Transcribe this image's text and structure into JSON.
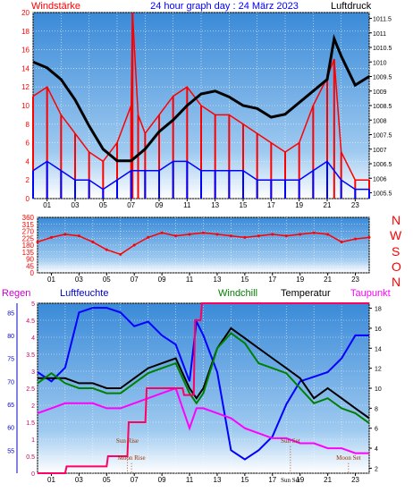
{
  "header": {
    "left_label": "Windstärke",
    "title": "24 hour graph day : 24 März 2023",
    "right_label": "Luftdruck"
  },
  "compass": [
    "N",
    "W",
    "S",
    "O",
    "N"
  ],
  "bottom_labels": {
    "regen": "Regen",
    "luftfeuchte": "Luftfeuchte",
    "windchill": "Windchill",
    "temperatur": "Temperatur",
    "taupunkt": "Taupunkt"
  },
  "annotations": {
    "sun_rise": "Sun Rise",
    "moon_rise": "Moon Rise",
    "sun_set": "Sun Set",
    "moon_set": "Moon Set",
    "sun_set_axis": "Sun Set"
  },
  "colors": {
    "wind_avg": "#0000ff",
    "wind_gust": "#ff0000",
    "pressure": "#000000",
    "wind_dir": "#ff0000",
    "humidity": "#0000ff",
    "windchill": "#008000",
    "temperature": "#000000",
    "dewpoint": "#ff00ff",
    "rain": "#ff0066",
    "header_left": "#ff0000",
    "header_title": "#0000ff",
    "header_right": "#000000",
    "bg_top": "#3a8ad8",
    "bg_bottom": "#ffffff"
  },
  "chart_data": [
    {
      "type": "line",
      "x_ticks": [
        "01",
        "03",
        "05",
        "07",
        "09",
        "11",
        "13",
        "15",
        "17",
        "19",
        "21",
        "23"
      ],
      "left_axis": {
        "ticks": [
          0,
          2,
          4,
          6,
          8,
          10,
          12,
          14,
          16,
          18,
          20
        ],
        "ylim": [
          0,
          20
        ]
      },
      "right_axis": {
        "ticks": [
          1005.5,
          1006,
          1006.5,
          1007,
          1007.5,
          1008,
          1008.5,
          1009,
          1009.5,
          1010,
          1010.5,
          1011,
          1011.5
        ],
        "ylim": [
          1005.3,
          1011.7
        ]
      },
      "series": [
        {
          "key": "wind_gust",
          "axis": "left",
          "x": [
            0,
            1,
            2,
            3,
            4,
            5,
            6,
            7,
            7.1,
            7.5,
            8,
            9,
            10,
            11,
            12,
            13,
            14,
            15,
            16,
            17,
            18,
            19,
            20,
            21,
            21.5,
            22,
            23,
            24
          ],
          "values": [
            11,
            12,
            9,
            7,
            5,
            4,
            6,
            10,
            20,
            9,
            7,
            9,
            11,
            12,
            10,
            9,
            9,
            8,
            7,
            6,
            5,
            6,
            10,
            13,
            15,
            5,
            2,
            2
          ]
        },
        {
          "key": "wind_avg",
          "axis": "left",
          "x": [
            0,
            1,
            2,
            3,
            4,
            5,
            6,
            7,
            8,
            9,
            10,
            11,
            12,
            13,
            14,
            15,
            16,
            17,
            18,
            19,
            20,
            21,
            22,
            23,
            24
          ],
          "values": [
            3,
            4,
            3,
            2,
            2,
            1,
            2,
            3,
            3,
            3,
            4,
            4,
            3,
            3,
            3,
            3,
            2,
            2,
            2,
            2,
            3,
            4,
            2,
            1,
            1
          ]
        },
        {
          "key": "pressure",
          "axis": "right",
          "x": [
            0,
            1,
            2,
            3,
            4,
            5,
            6,
            7,
            8,
            9,
            10,
            11,
            12,
            13,
            14,
            15,
            16,
            17,
            18,
            19,
            20,
            21,
            21.5,
            22,
            23,
            24
          ],
          "values": [
            1010.0,
            1009.8,
            1009.4,
            1008.7,
            1007.8,
            1007.0,
            1006.6,
            1006.6,
            1007.0,
            1007.6,
            1008.0,
            1008.5,
            1008.9,
            1009.0,
            1008.8,
            1008.5,
            1008.4,
            1008.1,
            1008.2,
            1008.6,
            1009.0,
            1009.4,
            1010.8,
            1010.2,
            1009.2,
            1009.5
          ]
        }
      ]
    },
    {
      "type": "line",
      "x_ticks": [
        "01",
        "03",
        "05",
        "07",
        "09",
        "11",
        "13",
        "15",
        "17",
        "19",
        "21",
        "23"
      ],
      "left_axis": {
        "ticks": [
          0,
          45,
          90,
          135,
          180,
          225,
          270,
          315,
          360
        ],
        "ylim": [
          0,
          360
        ]
      },
      "series": [
        {
          "key": "wind_dir",
          "x": [
            0,
            1,
            2,
            3,
            4,
            5,
            6,
            7,
            8,
            9,
            10,
            11,
            12,
            13,
            14,
            15,
            16,
            17,
            18,
            19,
            20,
            21,
            22,
            23,
            24
          ],
          "values": [
            200,
            230,
            250,
            240,
            200,
            150,
            120,
            180,
            230,
            260,
            240,
            250,
            260,
            250,
            240,
            230,
            240,
            250,
            240,
            250,
            260,
            250,
            200,
            220,
            230
          ]
        }
      ]
    },
    {
      "type": "line",
      "x_ticks": [
        "01",
        "03",
        "05",
        "07",
        "09",
        "11",
        "13",
        "15",
        "17",
        "19",
        "21",
        "23"
      ],
      "rain_axis": {
        "ticks": [
          0,
          0.5,
          1,
          1.5,
          2,
          2.5,
          3,
          3.5,
          4,
          4.5,
          5
        ],
        "ylim": [
          0,
          5
        ]
      },
      "humidity_axis": {
        "ticks": [
          55,
          60,
          65,
          70,
          75,
          80,
          85
        ],
        "ylim": [
          50,
          87
        ]
      },
      "temperature_axis": {
        "ticks": [
          2,
          4,
          6,
          8,
          10,
          12,
          14,
          16,
          18
        ],
        "ylim": [
          1.5,
          18.5
        ]
      },
      "series": [
        {
          "key": "humidity",
          "axis": "humidity",
          "x": [
            0,
            1,
            2,
            3,
            4,
            5,
            6,
            7,
            8,
            9,
            10,
            11,
            11.5,
            12,
            13,
            14,
            15,
            16,
            17,
            18,
            19,
            20,
            21,
            22,
            23,
            24
          ],
          "values": [
            72,
            70,
            73,
            85,
            86,
            86,
            85,
            82,
            83,
            80,
            78,
            70,
            83,
            80,
            72,
            55,
            53,
            55,
            58,
            65,
            70,
            71,
            72,
            75,
            80,
            80
          ]
        },
        {
          "key": "temperature",
          "axis": "temperature",
          "x": [
            0,
            1,
            2,
            3,
            4,
            5,
            6,
            7,
            8,
            9,
            10,
            11,
            11.5,
            12,
            13,
            14,
            15,
            16,
            17,
            18,
            19,
            20,
            21,
            22,
            23,
            24
          ],
          "values": [
            11,
            11,
            11,
            10.5,
            10.5,
            10,
            10,
            11,
            12,
            12.5,
            13,
            10,
            9,
            10,
            14,
            16,
            15,
            14,
            13,
            12,
            11,
            9,
            10,
            9,
            8,
            7
          ]
        },
        {
          "key": "windchill",
          "axis": "temperature",
          "x": [
            0,
            1,
            2,
            3,
            4,
            5,
            6,
            7,
            8,
            9,
            10,
            11,
            11.5,
            12,
            13,
            14,
            15,
            16,
            17,
            18,
            19,
            20,
            21,
            22,
            23,
            24
          ],
          "values": [
            10.5,
            11.5,
            10.5,
            10,
            10,
            9.5,
            9.5,
            10.5,
            11.5,
            12,
            12.5,
            9.5,
            8.5,
            9.5,
            14,
            15.5,
            14.5,
            12.5,
            12,
            11.5,
            10,
            8.5,
            9,
            8,
            7.5,
            6.5
          ]
        },
        {
          "key": "dewpoint",
          "axis": "temperature",
          "x": [
            0,
            1,
            2,
            3,
            4,
            5,
            6,
            7,
            8,
            9,
            10,
            11,
            11.5,
            12,
            13,
            14,
            15,
            16,
            17,
            18,
            19,
            20,
            21,
            22,
            23,
            24
          ],
          "values": [
            7.5,
            8,
            8.5,
            8.5,
            8.5,
            8,
            8,
            8.5,
            9,
            9.5,
            10,
            6,
            8,
            8,
            7.5,
            7,
            6,
            5.5,
            5,
            5,
            4.5,
            4.5,
            4,
            4,
            3.5,
            3.5
          ]
        },
        {
          "key": "rain",
          "axis": "rain",
          "x": [
            0,
            2,
            2.1,
            5,
            5.1,
            6.5,
            6.6,
            7.8,
            7.9,
            10.5,
            10.6,
            11.3,
            11.4,
            11.8,
            11.9,
            23,
            23.5,
            24
          ],
          "values": [
            0,
            0,
            0.2,
            0.2,
            0.5,
            0.5,
            1.5,
            1.5,
            2.5,
            2.5,
            2.3,
            2.3,
            4.5,
            4.5,
            5,
            5,
            5,
            5
          ]
        }
      ],
      "events": [
        {
          "key": "sun_rise",
          "hour": 6.5
        },
        {
          "key": "moon_rise",
          "hour": 6.8
        },
        {
          "key": "sun_set",
          "hour": 18.3
        },
        {
          "key": "moon_set",
          "hour": 22.5
        }
      ]
    }
  ]
}
